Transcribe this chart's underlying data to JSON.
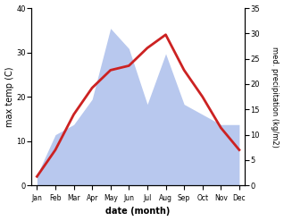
{
  "months": [
    "Jan",
    "Feb",
    "Mar",
    "Apr",
    "May",
    "Jun",
    "Jul",
    "Aug",
    "Sep",
    "Oct",
    "Nov",
    "Dec"
  ],
  "temperature": [
    2,
    8,
    16,
    22,
    26,
    27,
    31,
    34,
    26,
    20,
    13,
    8
  ],
  "precipitation": [
    2,
    10,
    12,
    17,
    31,
    27,
    16,
    26,
    16,
    14,
    12,
    12
  ],
  "temp_color": "#cc2222",
  "precip_color": "#b8c8ee",
  "ylim_left": [
    0,
    40
  ],
  "ylim_right": [
    0,
    35
  ],
  "yticks_left": [
    0,
    10,
    20,
    30,
    40
  ],
  "yticks_right": [
    0,
    5,
    10,
    15,
    20,
    25,
    30,
    35
  ],
  "xlabel": "date (month)",
  "ylabel_left": "max temp (C)",
  "ylabel_right": "med. precipitation (kg/m2)",
  "background_color": "#ffffff"
}
